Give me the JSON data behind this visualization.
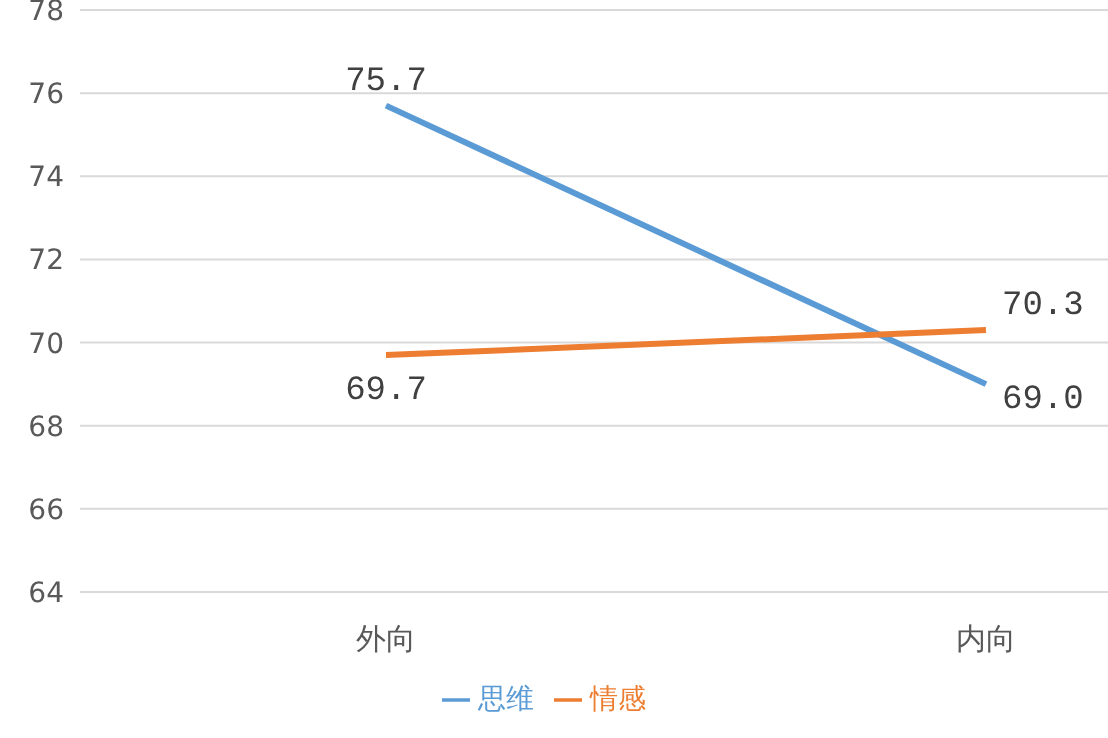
{
  "chart_data": {
    "type": "line",
    "categories": [
      "外向",
      "内向"
    ],
    "series": [
      {
        "name": "思维",
        "color": "#5b9bd5",
        "values": [
          75.7,
          69.0
        ],
        "value_labels": [
          "75.7",
          "69.0"
        ]
      },
      {
        "name": "情感",
        "color": "#ed7d31",
        "values": [
          69.7,
          70.3
        ],
        "value_labels": [
          "69.7",
          "70.3"
        ]
      }
    ],
    "ylim": [
      64,
      78
    ],
    "yticks": [
      64,
      66,
      68,
      70,
      72,
      74,
      76,
      78
    ],
    "grid": "y",
    "legend": "bottom",
    "marker": "none",
    "line_style": "solid"
  }
}
